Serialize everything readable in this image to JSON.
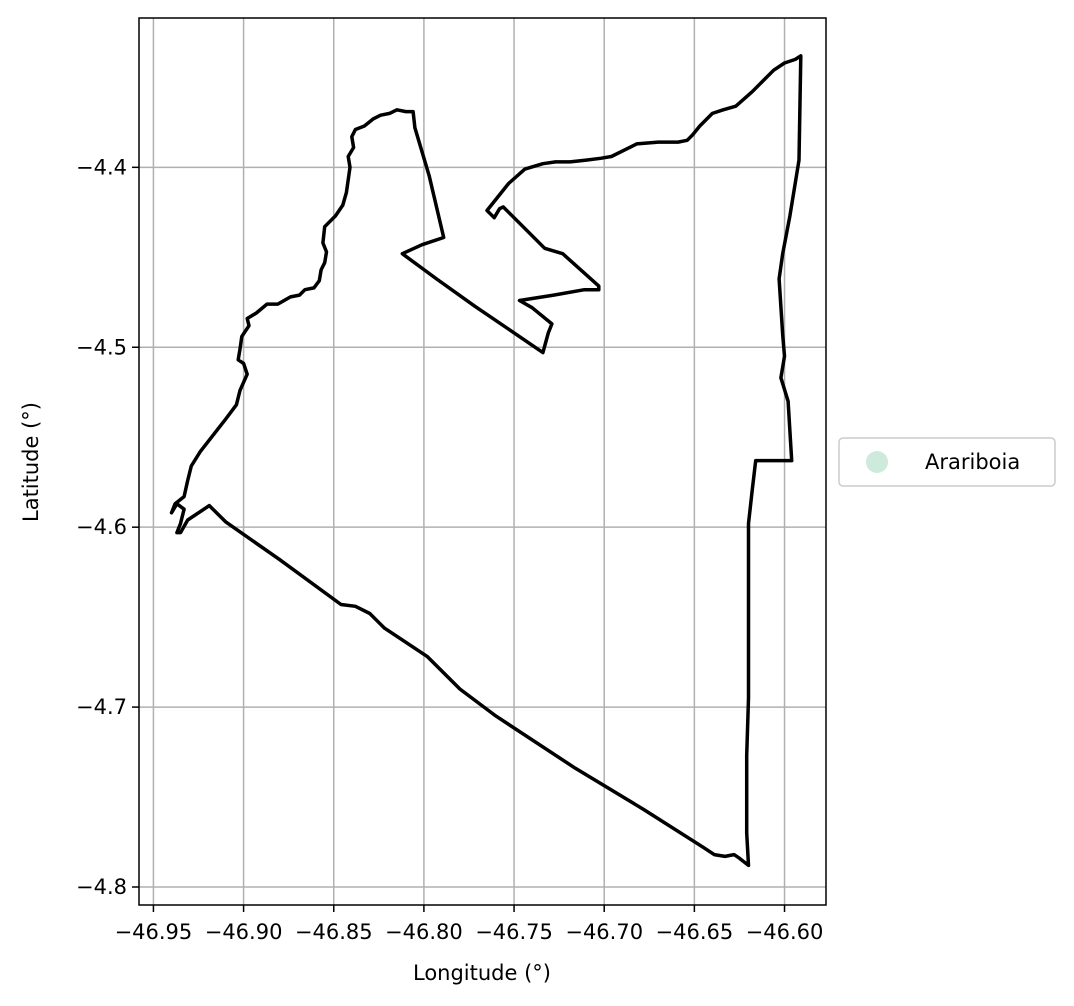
{
  "chart_data": {
    "type": "map",
    "title": "",
    "xlabel": "Longitude (°)",
    "ylabel": "Latitude (°)",
    "xlim": [
      -46.958,
      -46.577
    ],
    "ylim": [
      -4.81,
      -4.317
    ],
    "x_ticks": [
      -46.95,
      -46.9,
      -46.85,
      -46.8,
      -46.75,
      -46.7,
      -46.65,
      -46.6
    ],
    "x_tick_labels": [
      "−46.95",
      "−46.90",
      "−46.85",
      "−46.80",
      "−46.75",
      "−46.70",
      "−46.65",
      "−46.60"
    ],
    "y_ticks": [
      -4.4,
      -4.5,
      -4.6,
      -4.7,
      -4.8
    ],
    "y_tick_labels": [
      "−4.4",
      "−4.5",
      "−4.6",
      "−4.7",
      "−4.8"
    ],
    "grid": true,
    "legend_placement": "center-right-outside",
    "legend": [
      {
        "label": "Arariboia",
        "marker": "circle",
        "color": "#cdeadd"
      }
    ],
    "outline_color": "#000000",
    "outline_points": [
      [
        -46.591,
        -4.338
      ],
      [
        -46.592,
        -4.396
      ],
      [
        -46.597,
        -4.427
      ],
      [
        -46.601,
        -4.448
      ],
      [
        -46.603,
        -4.462
      ],
      [
        -46.601,
        -4.493
      ],
      [
        -46.6,
        -4.505
      ],
      [
        -46.602,
        -4.517
      ],
      [
        -46.598,
        -4.53
      ],
      [
        -46.596,
        -4.563
      ],
      [
        -46.606,
        -4.563
      ],
      [
        -46.616,
        -4.563
      ],
      [
        -46.618,
        -4.58
      ],
      [
        -46.62,
        -4.598
      ],
      [
        -46.62,
        -4.635
      ],
      [
        -46.62,
        -4.695
      ],
      [
        -46.621,
        -4.727
      ],
      [
        -46.621,
        -4.77
      ],
      [
        -46.62,
        -4.788
      ],
      [
        -46.625,
        -4.784
      ],
      [
        -46.628,
        -4.782
      ],
      [
        -46.633,
        -4.783
      ],
      [
        -46.639,
        -4.782
      ],
      [
        -46.645,
        -4.778
      ],
      [
        -46.678,
        -4.757
      ],
      [
        -46.716,
        -4.734
      ],
      [
        -46.76,
        -4.705
      ],
      [
        -46.78,
        -4.69
      ],
      [
        -46.798,
        -4.672
      ],
      [
        -46.822,
        -4.656
      ],
      [
        -46.826,
        -4.652
      ],
      [
        -46.83,
        -4.648
      ],
      [
        -46.838,
        -4.644
      ],
      [
        -46.846,
        -4.643
      ],
      [
        -46.88,
        -4.618
      ],
      [
        -46.91,
        -4.597
      ],
      [
        -46.919,
        -4.588
      ],
      [
        -46.931,
        -4.596
      ],
      [
        -46.935,
        -4.603
      ],
      [
        -46.937,
        -4.603
      ],
      [
        -46.935,
        -4.598
      ],
      [
        -46.933,
        -4.59
      ],
      [
        -46.937,
        -4.587
      ],
      [
        -46.94,
        -4.592
      ],
      [
        -46.938,
        -4.587
      ],
      [
        -46.933,
        -4.583
      ],
      [
        -46.931,
        -4.574
      ],
      [
        -46.929,
        -4.566
      ],
      [
        -46.924,
        -4.558
      ],
      [
        -46.917,
        -4.549
      ],
      [
        -46.91,
        -4.54
      ],
      [
        -46.904,
        -4.532
      ],
      [
        -46.902,
        -4.524
      ],
      [
        -46.898,
        -4.515
      ],
      [
        -46.9,
        -4.509
      ],
      [
        -46.903,
        -4.507
      ],
      [
        -46.902,
        -4.501
      ],
      [
        -46.901,
        -4.494
      ],
      [
        -46.897,
        -4.488
      ],
      [
        -46.898,
        -4.484
      ],
      [
        -46.893,
        -4.481
      ],
      [
        -46.887,
        -4.476
      ],
      [
        -46.881,
        -4.476
      ],
      [
        -46.874,
        -4.472
      ],
      [
        -46.869,
        -4.471
      ],
      [
        -46.866,
        -4.468
      ],
      [
        -46.861,
        -4.467
      ],
      [
        -46.858,
        -4.463
      ],
      [
        -46.857,
        -4.457
      ],
      [
        -46.855,
        -4.453
      ],
      [
        -46.854,
        -4.447
      ],
      [
        -46.856,
        -4.442
      ],
      [
        -46.855,
        -4.433
      ],
      [
        -46.849,
        -4.427
      ],
      [
        -46.845,
        -4.421
      ],
      [
        -46.843,
        -4.414
      ],
      [
        -46.842,
        -4.407
      ],
      [
        -46.841,
        -4.4
      ],
      [
        -46.842,
        -4.394
      ],
      [
        -46.839,
        -4.389
      ],
      [
        -46.84,
        -4.383
      ],
      [
        -46.838,
        -4.379
      ],
      [
        -46.833,
        -4.377
      ],
      [
        -46.828,
        -4.373
      ],
      [
        -46.824,
        -4.371
      ],
      [
        -46.819,
        -4.37
      ],
      [
        -46.815,
        -4.368
      ],
      [
        -46.81,
        -4.369
      ],
      [
        -46.806,
        -4.369
      ],
      [
        -46.805,
        -4.378
      ],
      [
        -46.797,
        -4.405
      ],
      [
        -46.789,
        -4.439
      ],
      [
        -46.801,
        -4.443
      ],
      [
        -46.812,
        -4.448
      ],
      [
        -46.793,
        -4.462
      ],
      [
        -46.772,
        -4.477
      ],
      [
        -46.75,
        -4.492
      ],
      [
        -46.734,
        -4.503
      ],
      [
        -46.731,
        -4.492
      ],
      [
        -46.729,
        -4.487
      ],
      [
        -46.74,
        -4.478
      ],
      [
        -46.747,
        -4.474
      ],
      [
        -46.728,
        -4.471
      ],
      [
        -46.711,
        -4.468
      ],
      [
        -46.703,
        -4.468
      ],
      [
        -46.703,
        -4.466
      ],
      [
        -46.723,
        -4.448
      ],
      [
        -46.733,
        -4.445
      ],
      [
        -46.748,
        -4.43
      ],
      [
        -46.756,
        -4.422
      ],
      [
        -46.758,
        -4.423
      ],
      [
        -46.761,
        -4.428
      ],
      [
        -46.765,
        -4.424
      ],
      [
        -46.757,
        -4.414
      ],
      [
        -46.753,
        -4.409
      ],
      [
        -46.744,
        -4.401
      ],
      [
        -46.734,
        -4.398
      ],
      [
        -46.727,
        -4.397
      ],
      [
        -46.719,
        -4.397
      ],
      [
        -46.71,
        -4.396
      ],
      [
        -46.702,
        -4.395
      ],
      [
        -46.696,
        -4.394
      ],
      [
        -46.688,
        -4.39
      ],
      [
        -46.682,
        -4.387
      ],
      [
        -46.67,
        -4.386
      ],
      [
        -46.659,
        -4.386
      ],
      [
        -46.654,
        -4.385
      ],
      [
        -46.651,
        -4.382
      ],
      [
        -46.647,
        -4.377
      ],
      [
        -46.64,
        -4.37
      ],
      [
        -46.634,
        -4.368
      ],
      [
        -46.627,
        -4.366
      ],
      [
        -46.618,
        -4.358
      ],
      [
        -46.606,
        -4.346
      ],
      [
        -46.6,
        -4.342
      ],
      [
        -46.594,
        -4.34
      ],
      [
        -46.591,
        -4.338
      ]
    ]
  }
}
